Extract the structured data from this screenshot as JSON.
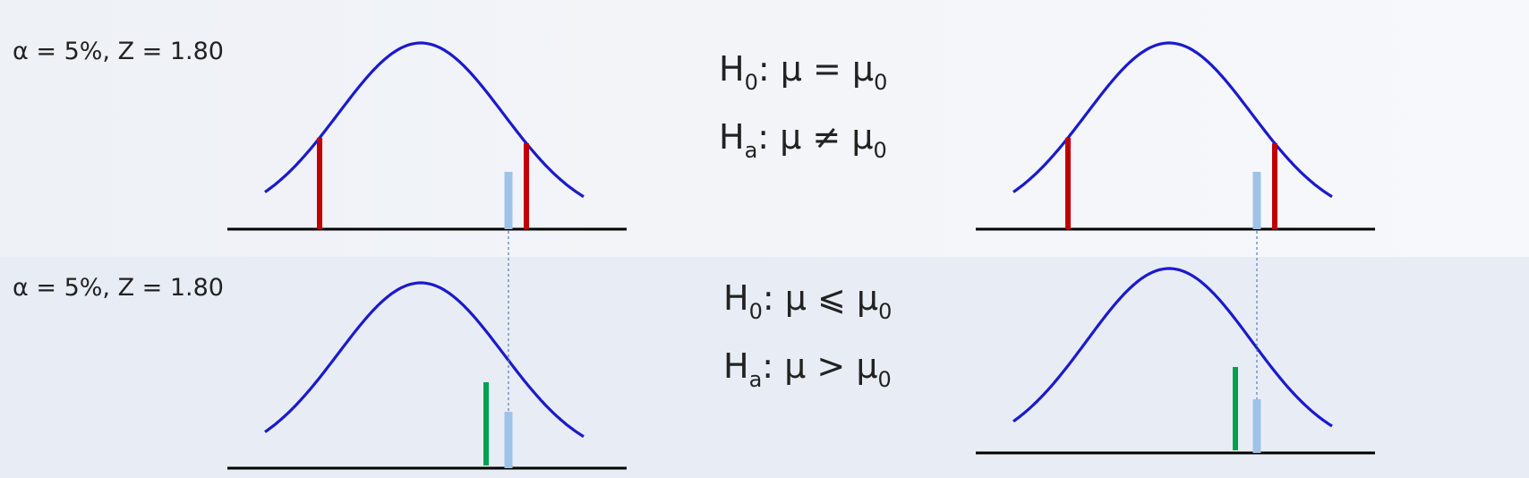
{
  "panels": [
    {
      "params_text": "α = 5%,  Z = 1.80",
      "h0": {
        "lhs": "H",
        "lhs_sub": "0",
        "rel": ": μ = μ",
        "rhs_sub": "0"
      },
      "ha": {
        "lhs": "H",
        "lhs_sub": "a",
        "rel": ": μ ≠ μ",
        "rhs_sub": "0"
      }
    },
    {
      "params_text": "α = 5%,  Z = 1.80",
      "h0": {
        "lhs": "H",
        "lhs_sub": "0",
        "rel": ": μ ⩽ μ",
        "rhs_sub": "0"
      },
      "ha": {
        "lhs": "H",
        "lhs_sub": "a",
        "rel": ": μ  > μ",
        "rhs_sub": "0"
      }
    }
  ],
  "colors": {
    "curve": "#1a1acc",
    "axis": "#000000",
    "critical_two_tailed": "#c00000",
    "critical_one_tailed": "#00a050",
    "test_statistic": "#9ec3e6",
    "guide_line": "#5b7fb0",
    "band_top": "#f3f4f7",
    "band_bottom": "#e9eef6"
  }
}
